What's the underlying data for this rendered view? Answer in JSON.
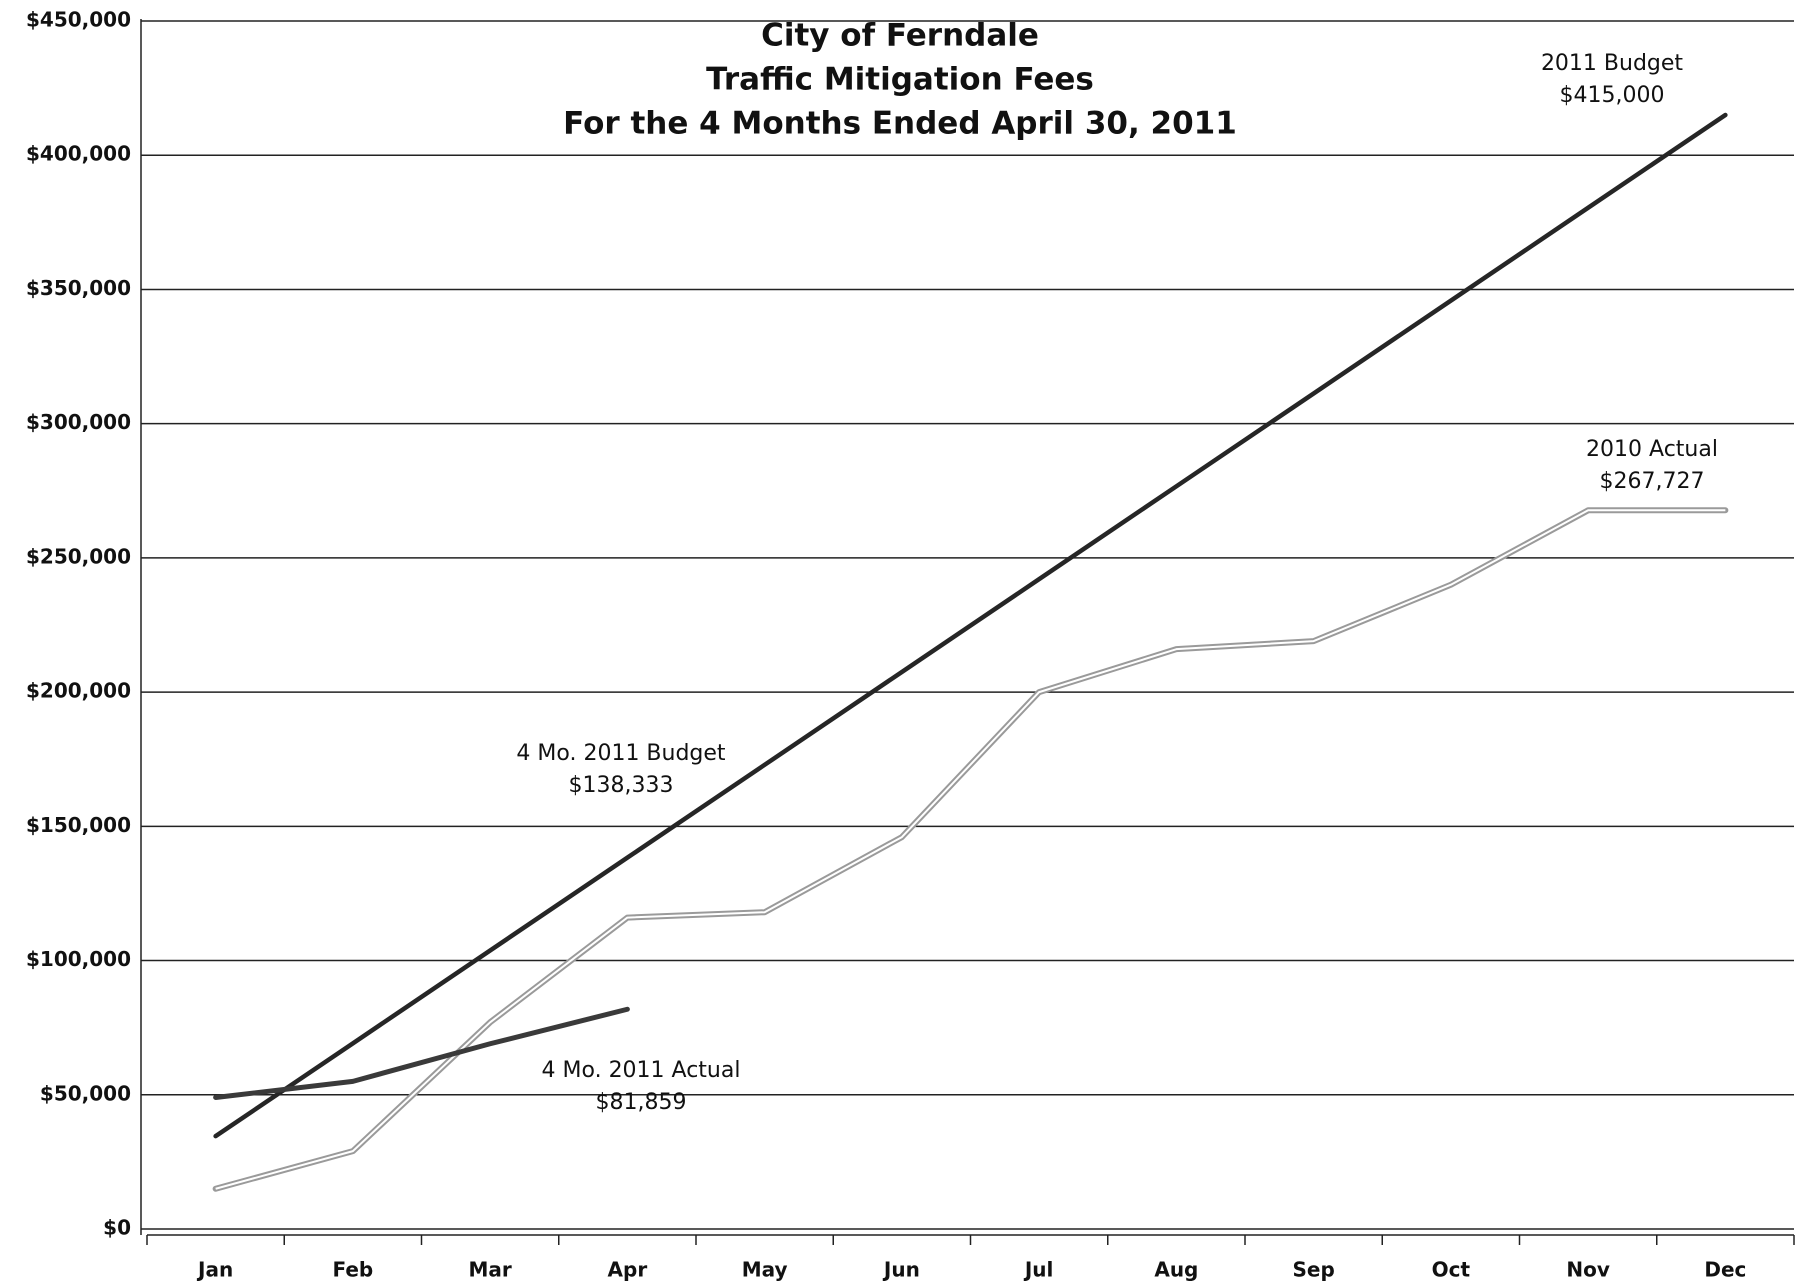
{
  "chart_data": {
    "type": "line",
    "title": [
      "City of Ferndale",
      "Traffic Mitigation Fees",
      "For the 4 Months Ended April 30, 2011"
    ],
    "categories": [
      "Jan",
      "Feb",
      "Mar",
      "Apr",
      "May",
      "Jun",
      "Jul",
      "Aug",
      "Sep",
      "Oct",
      "Nov",
      "Dec"
    ],
    "series": [
      {
        "name": "2011 Budget",
        "color": "#262626",
        "values": [
          34583,
          69167,
          103750,
          138333,
          172917,
          207500,
          242083,
          276667,
          311250,
          345833,
          380417,
          415000
        ]
      },
      {
        "name": "2010 Actual",
        "color": "#9a9a9a",
        "values": [
          15000,
          29000,
          77000,
          116000,
          118000,
          146000,
          200000,
          216000,
          219000,
          240000,
          267727,
          267727
        ]
      },
      {
        "name": "4 Mo. 2011 Actual",
        "color": "#3a3a3a",
        "values": [
          49000,
          55000,
          69000,
          81859,
          null,
          null,
          null,
          null,
          null,
          null,
          null,
          null
        ]
      }
    ],
    "annotations": [
      [
        "2011 Budget",
        "$415,000"
      ],
      [
        "2010 Actual",
        "$267,727"
      ],
      [
        "4 Mo. 2011 Budget",
        "$138,333"
      ],
      [
        "4 Mo. 2011 Actual",
        "$81,859"
      ]
    ],
    "ylim": [
      0,
      450000
    ],
    "yticks": [
      {
        "value": 0,
        "label": "$0"
      },
      {
        "value": 50000,
        "label": "$50,000"
      },
      {
        "value": 100000,
        "label": "$100,000"
      },
      {
        "value": 150000,
        "label": "$150,000"
      },
      {
        "value": 200000,
        "label": "$200,000"
      },
      {
        "value": 250000,
        "label": "$250,000"
      },
      {
        "value": 300000,
        "label": "$300,000"
      },
      {
        "value": 350000,
        "label": "$350,000"
      },
      {
        "value": 400000,
        "label": "$400,000"
      },
      {
        "value": 450000,
        "label": "$450,000"
      }
    ],
    "grid": true
  }
}
